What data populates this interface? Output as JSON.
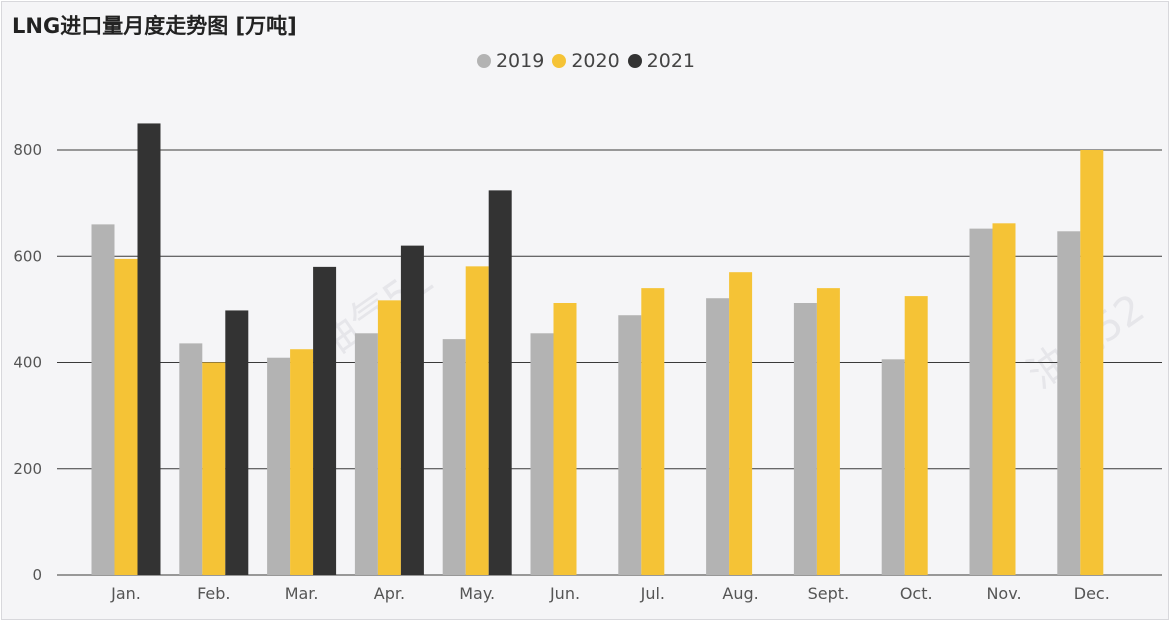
{
  "chart_data": {
    "type": "bar",
    "title": "LNG进口量月度走势图 [万吨]",
    "xlabel": "",
    "ylabel": "",
    "categories": [
      "Jan.",
      "Feb.",
      "Mar.",
      "Apr.",
      "May.",
      "Jun.",
      "Jul.",
      "Aug.",
      "Sept.",
      "Oct.",
      "Nov.",
      "Dec."
    ],
    "series": [
      {
        "name": "2019",
        "color": "#b3b3b3",
        "values": [
          660,
          436,
          409,
          455,
          444,
          455,
          489,
          521,
          512,
          406,
          652,
          647
        ]
      },
      {
        "name": "2020",
        "color": "#f5c336",
        "values": [
          595,
          400,
          425,
          517,
          581,
          512,
          540,
          570,
          540,
          525,
          662,
          800
        ]
      },
      {
        "name": "2021",
        "color": "#333333",
        "values": [
          850,
          498,
          580,
          620,
          724,
          null,
          null,
          null,
          null,
          null,
          null,
          null
        ]
      }
    ],
    "yticks": [
      0,
      200,
      400,
      600,
      800
    ],
    "ylim": [
      0,
      800
    ],
    "grid": true,
    "legend_position": "top-center"
  },
  "watermark": "油气52"
}
